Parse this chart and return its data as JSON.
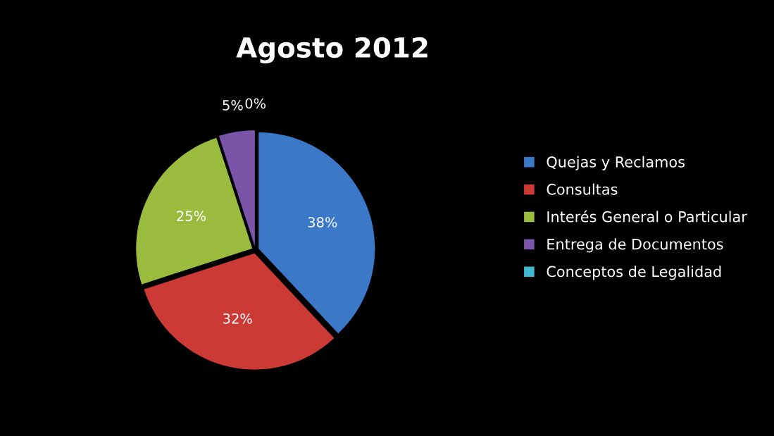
{
  "chart_data": {
    "type": "pie",
    "title": "Agosto 2012",
    "categories": [
      "Quejas y Reclamos",
      "Consultas",
      "Interés General o Particular",
      "Entrega de Documentos",
      "Conceptos de Legalidad"
    ],
    "values": [
      38,
      32,
      25,
      5,
      0
    ],
    "value_labels": [
      "38%",
      "32%",
      "25%",
      "5%",
      "0%"
    ],
    "colors": [
      "#3b78c8",
      "#cc3a36",
      "#9bbb3f",
      "#7a54a8",
      "#3fb8d0"
    ],
    "legend": "right"
  }
}
